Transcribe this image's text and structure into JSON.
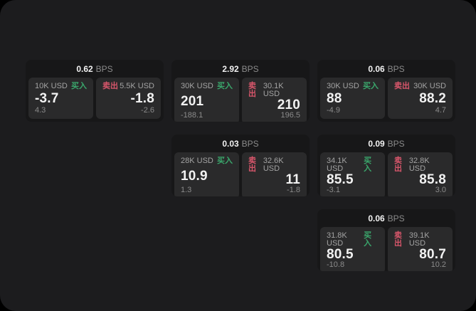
{
  "colors": {
    "page_background": "#000000",
    "panel_background": "#1c1c1e",
    "card_background": "#171718",
    "tile_background": "#2a2a2b",
    "primary_text": "#f2f2f2",
    "secondary_text": "#a3a3a3",
    "muted_text": "#8b8b8b",
    "buy_green": "#3aa76c",
    "sell_red": "#d8566b"
  },
  "cards": [
    {
      "row": 1,
      "col": 1,
      "bps_value": "0.62",
      "bps_unit": "BPS",
      "buy": {
        "notional": "10K USD",
        "label": "买入",
        "price": "-3.7",
        "delta": "4.3"
      },
      "sell": {
        "label": "卖出",
        "notional": "5.5K USD",
        "price": "-1.8",
        "delta": "-2.6"
      }
    },
    {
      "row": 1,
      "col": 2,
      "bps_value": "2.92",
      "bps_unit": "BPS",
      "buy": {
        "notional": "30K USD",
        "label": "买入",
        "price": "201",
        "delta": "-188.1"
      },
      "sell": {
        "label": "卖出",
        "notional": "30.1K USD",
        "price": "210",
        "delta": "196.5"
      }
    },
    {
      "row": 1,
      "col": 3,
      "bps_value": "0.06",
      "bps_unit": "BPS",
      "buy": {
        "notional": "30K USD",
        "label": "买入",
        "price": "88",
        "delta": "-4.9"
      },
      "sell": {
        "label": "卖出",
        "notional": "30K USD",
        "price": "88.2",
        "delta": "4.7"
      }
    },
    {
      "row": 2,
      "col": 2,
      "bps_value": "0.03",
      "bps_unit": "BPS",
      "buy": {
        "notional": "28K USD",
        "label": "买入",
        "price": "10.9",
        "delta": "1.3"
      },
      "sell": {
        "label": "卖出",
        "notional": "32.6K USD",
        "price": "11",
        "delta": "-1.8"
      }
    },
    {
      "row": 2,
      "col": 3,
      "bps_value": "0.09",
      "bps_unit": "BPS",
      "buy": {
        "notional": "34.1K USD",
        "label": "买入",
        "price": "85.5",
        "delta": "-3.1"
      },
      "sell": {
        "label": "卖出",
        "notional": "32.8K USD",
        "price": "85.8",
        "delta": "3.0"
      }
    },
    {
      "row": 3,
      "col": 3,
      "bps_value": "0.06",
      "bps_unit": "BPS",
      "buy": {
        "notional": "31.8K USD",
        "label": "买入",
        "price": "80.5",
        "delta": "-10.8"
      },
      "sell": {
        "label": "卖出",
        "notional": "39.1K USD",
        "price": "80.7",
        "delta": "10.2"
      }
    }
  ]
}
